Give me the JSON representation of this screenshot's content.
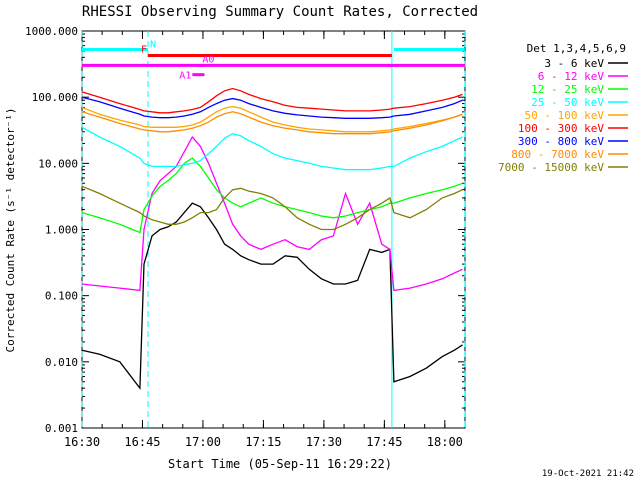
{
  "chart_data": {
    "type": "line",
    "title": "RHESSI Observing Summary Count Rates, Corrected",
    "xlabel": "Start Time (05-Sep-11 16:29:22)",
    "ylabel": "Corrected Count Rate (s⁻¹ detector⁻¹)",
    "y_scale": "log",
    "ylim": [
      0.001,
      1000
    ],
    "xlim_minutes_from_start": [
      0.63,
      95.63
    ],
    "x_tick_labels": [
      "16:30",
      "16:45",
      "17:00",
      "17:15",
      "17:30",
      "17:45",
      "18:00"
    ],
    "x_tick_minutes": [
      0.63,
      15.63,
      30.63,
      45.63,
      60.63,
      75.63,
      90.63
    ],
    "y_tick_labels": [
      "0.001",
      "0.010",
      "0.100",
      "1.000",
      "10.000",
      "100.000",
      "1000.000"
    ],
    "y_tick_values": [
      0.001,
      0.01,
      0.1,
      1,
      10,
      100,
      1000
    ],
    "legend_title": "Det 1,3,4,5,6,9",
    "legend_placement": "right",
    "footer": "19-Oct-2021 21:42",
    "x_minutes": [
      0,
      5,
      10,
      15,
      16,
      18,
      20,
      22,
      24,
      26,
      28,
      30,
      32,
      34,
      36,
      38,
      40,
      42,
      45,
      48,
      51,
      54,
      57,
      60,
      63,
      66,
      69,
      72,
      75,
      77,
      78,
      82,
      86,
      90,
      93,
      95
    ],
    "series": [
      {
        "name": "3 - 6 keV",
        "color": "#000000",
        "values": [
          0.015,
          0.013,
          0.01,
          0.004,
          0.3,
          0.8,
          1.0,
          1.1,
          1.3,
          1.8,
          2.5,
          2.2,
          1.5,
          1.0,
          0.6,
          0.5,
          0.4,
          0.35,
          0.3,
          0.3,
          0.4,
          0.38,
          0.25,
          0.18,
          0.15,
          0.15,
          0.17,
          0.5,
          0.45,
          0.5,
          0.005,
          0.006,
          0.008,
          0.012,
          0.015,
          0.018
        ]
      },
      {
        "name": "6 - 12 keV",
        "color": "#ff00ff",
        "values": [
          0.15,
          0.14,
          0.13,
          0.12,
          1.0,
          3.5,
          5.5,
          7,
          9,
          15,
          25,
          18,
          10,
          5,
          2.5,
          1.2,
          0.8,
          0.6,
          0.5,
          0.6,
          0.7,
          0.55,
          0.5,
          0.7,
          0.8,
          3.5,
          1.2,
          2.5,
          0.6,
          0.5,
          0.12,
          0.13,
          0.15,
          0.18,
          0.22,
          0.25
        ]
      },
      {
        "name": "12 - 25 keV",
        "color": "#00ff00",
        "values": [
          1.8,
          1.5,
          1.2,
          0.9,
          2.0,
          3.2,
          4.5,
          5.5,
          7,
          10,
          12,
          9,
          6,
          4,
          3,
          2.5,
          2.2,
          2.5,
          3,
          2.5,
          2.2,
          2.0,
          1.8,
          1.6,
          1.5,
          1.6,
          1.8,
          2.0,
          2.2,
          2.5,
          2.5,
          3,
          3.5,
          4,
          4.5,
          5
        ]
      },
      {
        "name": "25 - 50 keV",
        "color": "#00ffff",
        "values": [
          35,
          25,
          18,
          12,
          10,
          9,
          9,
          9,
          9,
          9.5,
          10,
          11,
          14,
          18,
          24,
          28,
          26,
          22,
          18,
          14,
          12,
          11,
          10,
          9,
          8.5,
          8,
          8,
          8,
          8.5,
          9,
          9,
          12,
          15,
          18,
          22,
          25
        ]
      },
      {
        "name": "50 - 100 keV",
        "color": "#ffa500",
        "values": [
          70,
          55,
          45,
          38,
          36,
          35,
          35,
          35,
          35,
          36,
          38,
          42,
          50,
          60,
          68,
          72,
          68,
          60,
          50,
          42,
          38,
          35,
          33,
          32,
          31,
          30,
          30,
          30,
          31,
          32,
          33,
          36,
          40,
          45,
          50,
          55
        ]
      },
      {
        "name": "100 - 300 keV",
        "color": "#ff0000",
        "values": [
          120,
          100,
          80,
          65,
          62,
          60,
          58,
          58,
          60,
          62,
          65,
          70,
          85,
          105,
          125,
          135,
          125,
          110,
          95,
          85,
          75,
          70,
          68,
          66,
          64,
          62,
          62,
          62,
          64,
          66,
          68,
          72,
          80,
          90,
          100,
          110
        ]
      },
      {
        "name": "300 - 800 keV",
        "color": "#0000ff",
        "values": [
          100,
          85,
          68,
          55,
          52,
          50,
          49,
          49,
          50,
          52,
          55,
          60,
          70,
          80,
          90,
          95,
          90,
          80,
          70,
          62,
          57,
          54,
          52,
          50,
          49,
          48,
          48,
          48,
          49,
          50,
          52,
          55,
          62,
          70,
          80,
          90
        ]
      },
      {
        "name": "800 - 7000 keV",
        "color": "#ff8c00",
        "values": [
          60,
          50,
          40,
          33,
          32,
          31,
          30,
          30,
          31,
          32,
          34,
          37,
          42,
          50,
          56,
          60,
          56,
          50,
          42,
          37,
          34,
          32,
          30,
          29,
          28,
          28,
          28,
          28,
          29,
          30,
          31,
          34,
          38,
          44,
          50,
          55
        ]
      },
      {
        "name": "7000 - 15000 keV",
        "color": "#808000",
        "values": [
          4.5,
          3.5,
          2.5,
          1.8,
          1.6,
          1.4,
          1.3,
          1.2,
          1.2,
          1.3,
          1.5,
          1.8,
          1.8,
          2.0,
          3.0,
          4.0,
          4.2,
          3.8,
          3.5,
          3.0,
          2.2,
          1.5,
          1.2,
          1.0,
          1.0,
          1.2,
          1.5,
          2.0,
          2.5,
          3.0,
          1.8,
          1.5,
          2.0,
          3.0,
          3.5,
          4.0
        ]
      }
    ],
    "flags": [
      {
        "label": "N",
        "color": "#00ffff",
        "log_y": 2.72,
        "x_start": 0.6,
        "x_end": 17,
        "x2_start": 78,
        "x2_end": 95.6
      },
      {
        "label": "F",
        "color": "#ff0000",
        "log_y": 2.63,
        "x_start": 17,
        "x_end": 77.5
      },
      {
        "label": "",
        "color": "#ff00ff",
        "log_y": 2.48,
        "x_start": 0.6,
        "x_end": 95.6
      },
      {
        "label": "A1",
        "color": "#ff00ff",
        "log_y": 2.34,
        "x_start": 28,
        "x_end": 31
      },
      {
        "label": "A0",
        "color": "#ff00ff",
        "log_y": 2.48,
        "x_start": 30,
        "x_end": 31
      }
    ],
    "vertical_markers": [
      {
        "x": 0.6,
        "color": "#00ffff",
        "style": "dashed"
      },
      {
        "x": 17,
        "color": "#00ffff",
        "style": "dashed"
      },
      {
        "x": 77.5,
        "color": "#00ffff",
        "style": "solid"
      },
      {
        "x": 95.6,
        "color": "#00ffff",
        "style": "dashed"
      }
    ]
  }
}
